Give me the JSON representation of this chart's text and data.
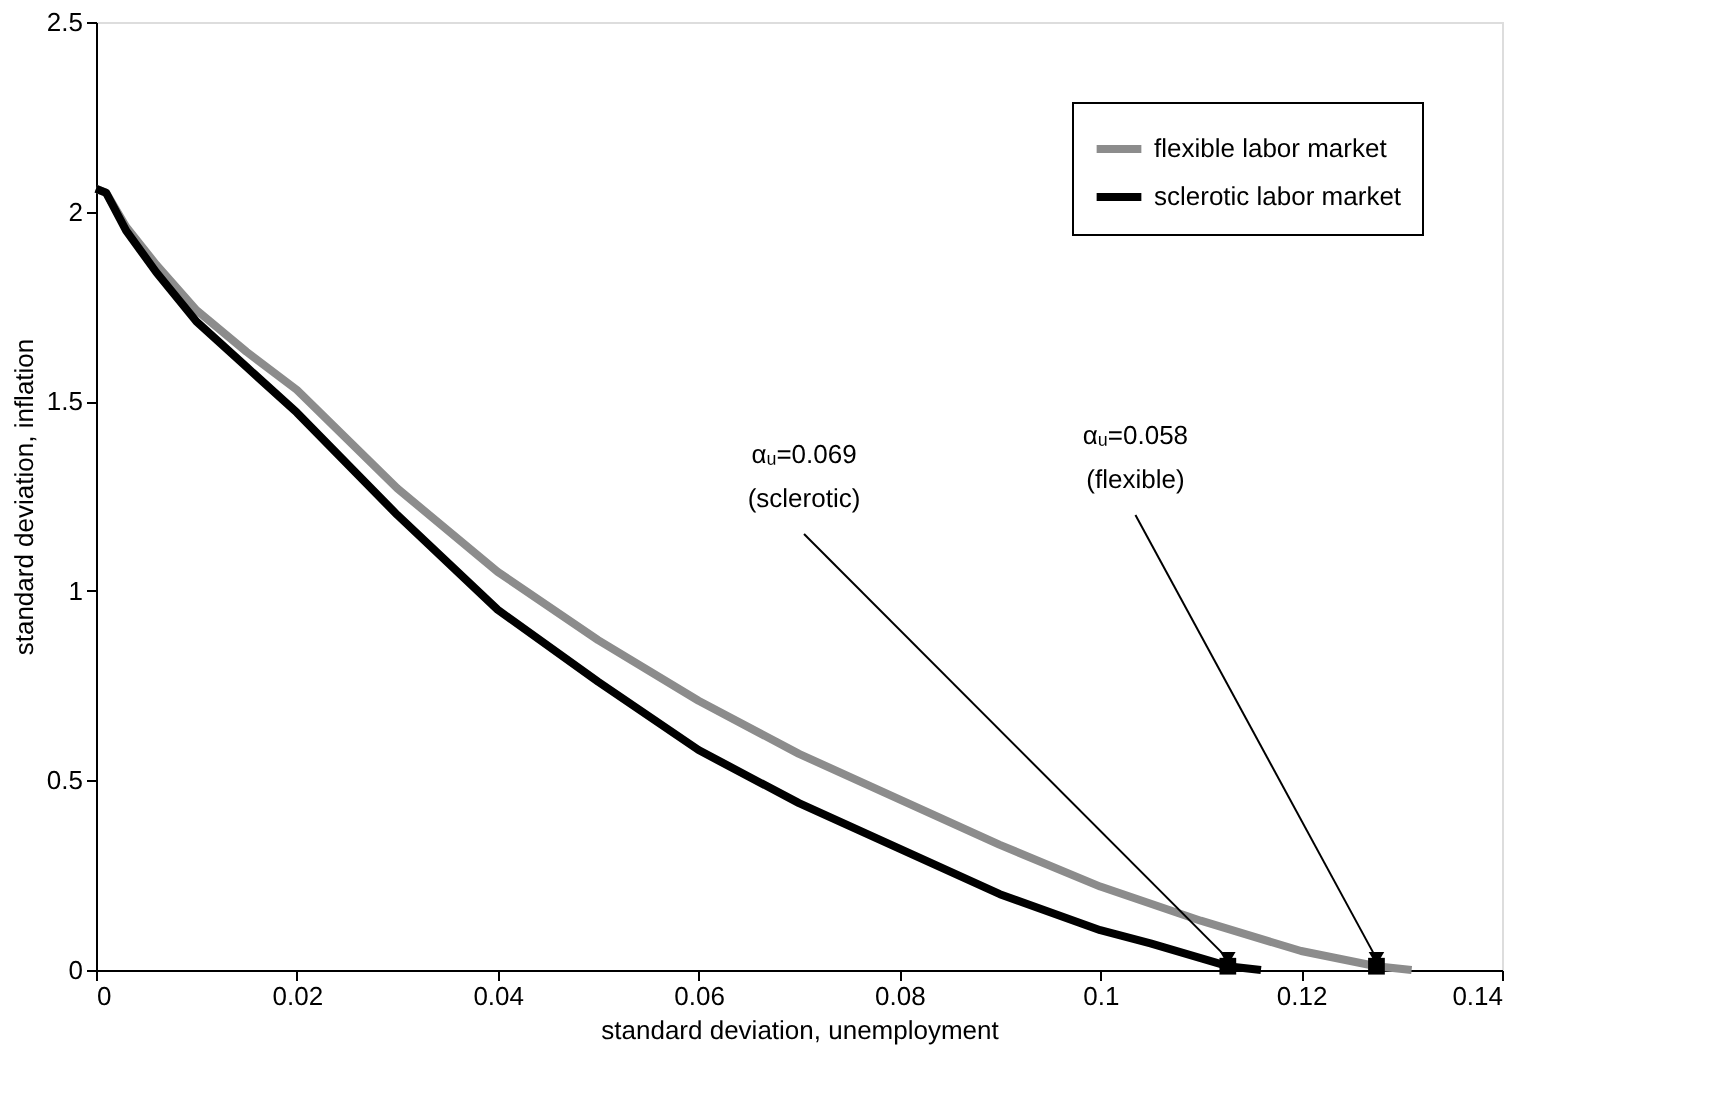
{
  "chart_data": {
    "type": "line",
    "xlabel": "standard deviation, unemployment",
    "ylabel": "standard deviation, inflation",
    "xlim": [
      0,
      0.14
    ],
    "xticks": [
      0,
      0.02,
      0.04,
      0.06,
      0.08,
      0.1,
      0.12,
      0.14
    ],
    "ylim": [
      0,
      2.5
    ],
    "yticks": [
      0,
      0.5,
      1,
      1.5,
      2,
      2.5
    ],
    "grid": false,
    "legend": "top right",
    "line_style": "solid",
    "series": [
      {
        "name": "flexible labor market",
        "color": "#8c8c8c",
        "x": [
          0,
          0.001,
          0.003,
          0.006,
          0.01,
          0.015,
          0.02,
          0.03,
          0.04,
          0.05,
          0.06,
          0.07,
          0.08,
          0.09,
          0.1,
          0.11,
          0.12,
          0.1275,
          0.131
        ],
        "values": [
          2.06,
          2.05,
          1.96,
          1.86,
          1.74,
          1.63,
          1.53,
          1.27,
          1.05,
          0.87,
          0.71,
          0.57,
          0.45,
          0.33,
          0.22,
          0.13,
          0.05,
          0.01,
          0
        ]
      },
      {
        "name": "sclerotic labor market",
        "color": "#000000",
        "x": [
          0,
          0.001,
          0.003,
          0.006,
          0.01,
          0.015,
          0.02,
          0.03,
          0.04,
          0.05,
          0.06,
          0.07,
          0.08,
          0.09,
          0.1,
          0.105,
          0.1127,
          0.116
        ],
        "values": [
          2.06,
          2.05,
          1.95,
          1.84,
          1.71,
          1.59,
          1.47,
          1.2,
          0.95,
          0.76,
          0.58,
          0.44,
          0.32,
          0.2,
          0.105,
          0.07,
          0.01,
          0
        ]
      },
      {
        "type": "scatter",
        "marker": "square",
        "color": "#000000",
        "x": [
          0.1127,
          0.1275
        ],
        "values": [
          0.01,
          0.01
        ]
      }
    ],
    "annotations": [
      {
        "text": "αᵤ=0.069\n(sclerotic)",
        "x": 0.1127,
        "y": 0.01
      },
      {
        "text": "αᵤ=0.058\n(flexible)",
        "x": 0.1275,
        "y": 0.01
      }
    ]
  }
}
